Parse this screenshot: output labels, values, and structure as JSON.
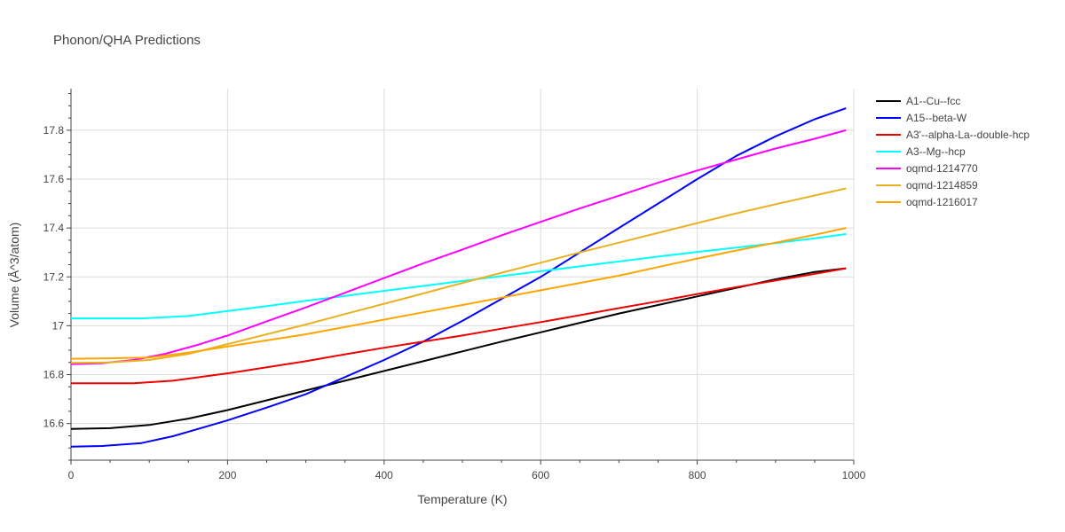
{
  "chart_data": {
    "type": "line",
    "title": "Phonon/QHA Predictions",
    "xlabel": "Temperature (K)",
    "ylabel": "Volume (Å^3/atom)",
    "xlim": [
      0,
      1000
    ],
    "ylim": [
      16.45,
      17.97
    ],
    "x_ticks": [
      0,
      200,
      400,
      600,
      800,
      1000
    ],
    "x_tick_labels": [
      "0",
      "200",
      "400",
      "600",
      "800",
      "1000"
    ],
    "y_ticks": [
      16.6,
      16.8,
      17.0,
      17.2,
      17.4,
      17.6,
      17.8
    ],
    "y_tick_labels": [
      "16.6",
      "16.8",
      "17",
      "17.2",
      "17.4",
      "17.6",
      "17.8"
    ],
    "grid": true,
    "legend_position": "right",
    "series": [
      {
        "name": "A1--Cu--fcc",
        "color": "#000000",
        "x": [
          0,
          50,
          100,
          150,
          200,
          250,
          300,
          350,
          400,
          450,
          500,
          550,
          600,
          650,
          700,
          750,
          800,
          850,
          900,
          950,
          990
        ],
        "y": [
          16.578,
          16.581,
          16.594,
          16.62,
          16.655,
          16.695,
          16.735,
          16.775,
          16.815,
          16.855,
          16.895,
          16.935,
          16.973,
          17.012,
          17.05,
          17.085,
          17.12,
          17.155,
          17.19,
          17.22,
          17.235
        ]
      },
      {
        "name": "A15--beta-W",
        "color": "#0000ff",
        "x": [
          0,
          40,
          90,
          130,
          170,
          200,
          250,
          300,
          350,
          400,
          450,
          500,
          550,
          600,
          650,
          700,
          750,
          800,
          850,
          900,
          950,
          990
        ],
        "y": [
          16.505,
          16.508,
          16.52,
          16.548,
          16.585,
          16.613,
          16.665,
          16.72,
          16.79,
          16.86,
          16.935,
          17.02,
          17.11,
          17.2,
          17.3,
          17.4,
          17.5,
          17.6,
          17.695,
          17.775,
          17.845,
          17.89
        ]
      },
      {
        "name": "A3'--alpha-La--double-hcp",
        "color": "#ee0000",
        "x": [
          0,
          50,
          80,
          130,
          200,
          250,
          300,
          350,
          400,
          450,
          500,
          550,
          600,
          650,
          700,
          750,
          800,
          850,
          900,
          950,
          990
        ],
        "y": [
          16.765,
          16.765,
          16.765,
          16.775,
          16.805,
          16.83,
          16.855,
          16.883,
          16.91,
          16.935,
          16.96,
          16.988,
          17.015,
          17.043,
          17.072,
          17.1,
          17.13,
          17.158,
          17.185,
          17.212,
          17.235
        ]
      },
      {
        "name": "A3--Mg--hcp",
        "color": "#00ffff",
        "x": [
          0,
          50,
          90,
          150,
          200,
          250,
          300,
          350,
          400,
          450,
          500,
          550,
          600,
          650,
          700,
          750,
          800,
          850,
          900,
          950,
          990
        ],
        "y": [
          17.03,
          17.03,
          17.03,
          17.04,
          17.06,
          17.08,
          17.102,
          17.122,
          17.143,
          17.163,
          17.183,
          17.203,
          17.223,
          17.243,
          17.263,
          17.283,
          17.302,
          17.32,
          17.338,
          17.358,
          17.375
        ]
      },
      {
        "name": "oqmd-1214770",
        "color": "#ff00ff",
        "x": [
          0,
          40,
          80,
          120,
          160,
          200,
          250,
          300,
          350,
          400,
          450,
          500,
          550,
          600,
          650,
          700,
          750,
          800,
          850,
          900,
          950,
          990
        ],
        "y": [
          16.843,
          16.847,
          16.86,
          16.885,
          16.92,
          16.96,
          17.018,
          17.075,
          17.135,
          17.195,
          17.255,
          17.312,
          17.37,
          17.425,
          17.48,
          17.532,
          17.585,
          17.635,
          17.68,
          17.725,
          17.765,
          17.8
        ]
      },
      {
        "name": "oqmd-1214859",
        "color": "#e8b222",
        "x": [
          0,
          50,
          100,
          150,
          200,
          250,
          300,
          350,
          400,
          450,
          500,
          550,
          600,
          650,
          700,
          750,
          800,
          850,
          900,
          950,
          990
        ],
        "y": [
          16.848,
          16.85,
          16.86,
          16.885,
          16.925,
          16.965,
          17.005,
          17.048,
          17.09,
          17.132,
          17.175,
          17.217,
          17.258,
          17.3,
          17.34,
          17.38,
          17.42,
          17.46,
          17.497,
          17.533,
          17.562
        ]
      },
      {
        "name": "oqmd-1216017",
        "color": "#ffa500",
        "x": [
          0,
          50,
          100,
          150,
          200,
          250,
          300,
          350,
          400,
          450,
          500,
          550,
          600,
          650,
          700,
          750,
          800,
          850,
          900,
          950,
          990
        ],
        "y": [
          16.865,
          16.867,
          16.87,
          16.89,
          16.915,
          16.94,
          16.965,
          16.995,
          17.025,
          17.055,
          17.085,
          17.115,
          17.145,
          17.175,
          17.205,
          17.24,
          17.275,
          17.308,
          17.34,
          17.372,
          17.4
        ]
      }
    ]
  }
}
